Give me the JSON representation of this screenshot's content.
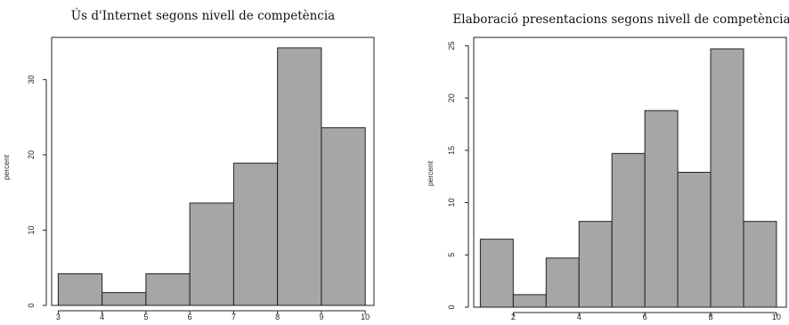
{
  "chart_data": [
    {
      "type": "bar",
      "title": "Ús d'Internet segons nivell de competència",
      "xlabel": "",
      "ylabel": "percent",
      "bins": [
        [
          3,
          4
        ],
        [
          4,
          5
        ],
        [
          5,
          6
        ],
        [
          6,
          7
        ],
        [
          7,
          8
        ],
        [
          8,
          9
        ],
        [
          9,
          10
        ]
      ],
      "values": [
        4.2,
        1.7,
        4.2,
        13.6,
        18.9,
        34.2,
        23.6
      ],
      "xlim": [
        2.85,
        10.2
      ],
      "ylim": [
        0,
        35.6
      ],
      "xticks": [
        3,
        4,
        5,
        6,
        7,
        8,
        9,
        10
      ],
      "yticks": [
        0,
        10,
        20,
        30
      ],
      "bar_color": "#a6a6a6"
    },
    {
      "type": "bar",
      "title": "Elaboració presentacions segons nivell de competència",
      "xlabel": "",
      "ylabel": "percent",
      "bins": [
        [
          1,
          2
        ],
        [
          2,
          3
        ],
        [
          3,
          4
        ],
        [
          4,
          5
        ],
        [
          5,
          6
        ],
        [
          6,
          7
        ],
        [
          7,
          8
        ],
        [
          8,
          9
        ],
        [
          9,
          10
        ]
      ],
      "values": [
        6.5,
        1.2,
        4.7,
        8.2,
        14.7,
        18.8,
        12.9,
        24.7,
        8.2
      ],
      "xlim": [
        0.8,
        10.3
      ],
      "ylim": [
        0,
        25.8
      ],
      "xticks": [
        2,
        4,
        6,
        8,
        10
      ],
      "yticks": [
        0,
        5,
        10,
        15,
        20,
        25
      ],
      "bar_color": "#a6a6a6"
    }
  ]
}
